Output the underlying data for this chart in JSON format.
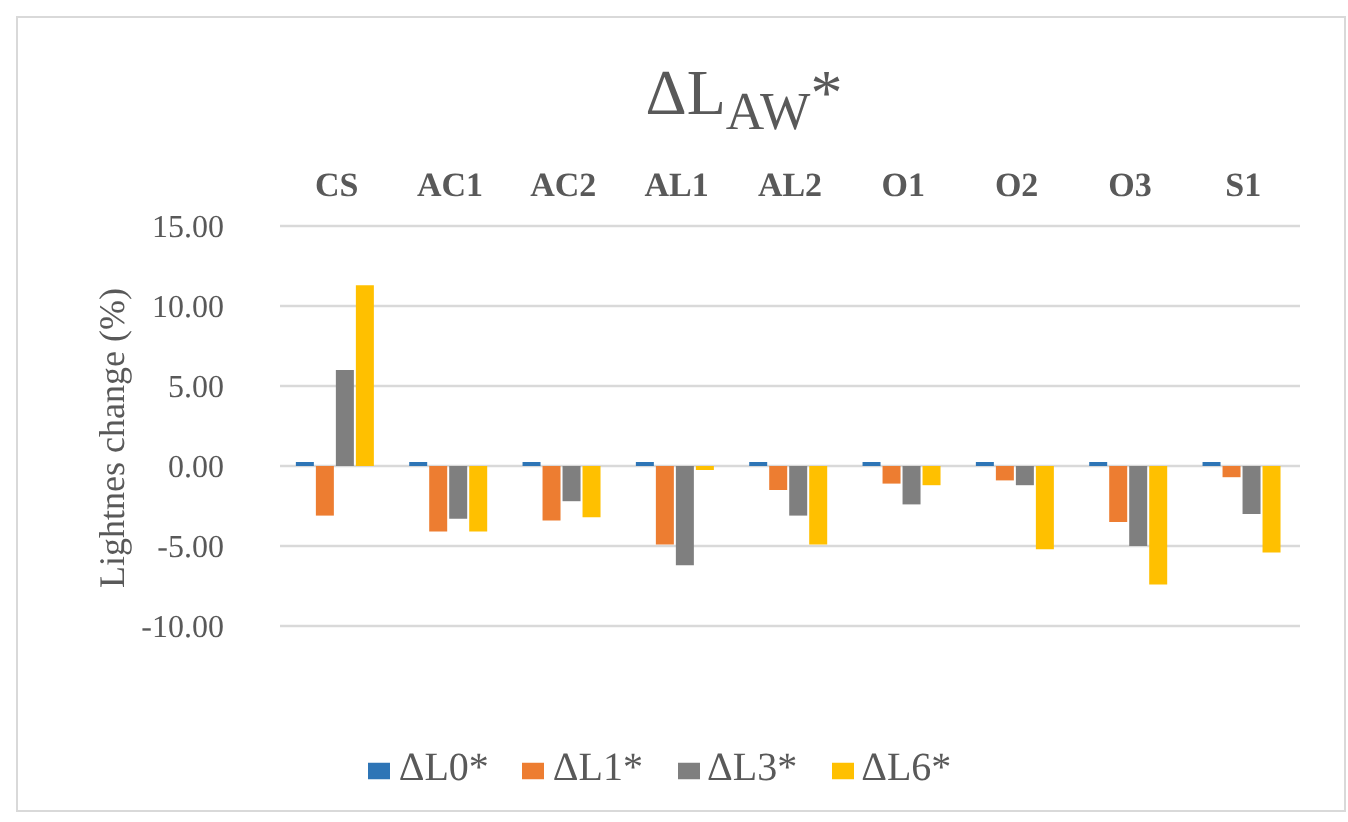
{
  "chart_data": {
    "type": "bar",
    "title": "ΔL$_{AW}$*",
    "ylabel": "Lightnes change (%)",
    "categories": [
      "CS",
      "AC1",
      "AC2",
      "AL1",
      "AL2",
      "O1",
      "O2",
      "O3",
      "S1"
    ],
    "series": [
      {
        "name": "ΔL0*",
        "color": "#2e75b6",
        "values": [
          0,
          0,
          0,
          0,
          0,
          0,
          0,
          0,
          0
        ]
      },
      {
        "name": "ΔL1*",
        "color": "#ed7d31",
        "values": [
          -3.1,
          -4.1,
          -3.4,
          -4.9,
          -1.5,
          -1.1,
          -0.9,
          -3.5,
          -0.7
        ]
      },
      {
        "name": "ΔL3*",
        "color": "#7f7f7f",
        "values": [
          6.0,
          -3.3,
          -2.2,
          -6.2,
          -3.1,
          -2.4,
          -1.2,
          -5.0,
          -3.0
        ]
      },
      {
        "name": "ΔL6*",
        "color": "#ffc000",
        "values": [
          11.3,
          -4.1,
          -3.2,
          -0.2,
          -4.9,
          -1.2,
          -5.2,
          -7.4,
          -5.4
        ]
      }
    ],
    "ylim": [
      -10,
      15
    ],
    "yticks": [
      {
        "value": -10,
        "label": "-10.00"
      },
      {
        "value": -5,
        "label": "-5.00"
      },
      {
        "value": 0,
        "label": "0.00"
      },
      {
        "value": 5,
        "label": "5.00"
      },
      {
        "value": 10,
        "label": "10.00"
      },
      {
        "value": 15,
        "label": "15.00"
      }
    ],
    "grid": "y",
    "legend": "bottom"
  }
}
